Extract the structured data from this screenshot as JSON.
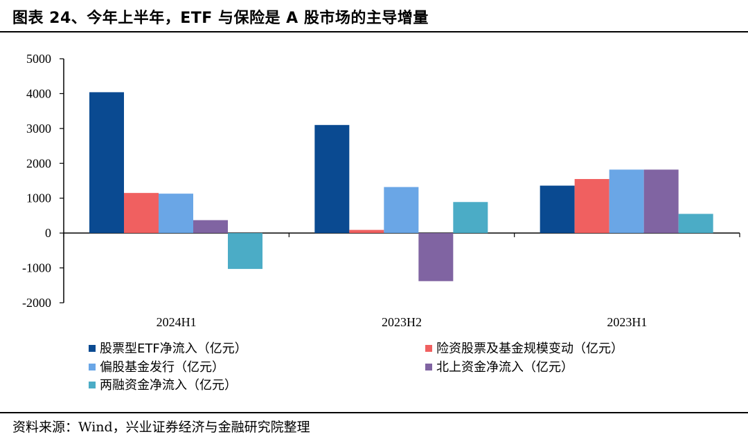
{
  "header": {
    "title": "图表 24、今年上半年，ETF 与保险是 A 股市场的主导增量"
  },
  "footer": {
    "source": "资料来源：Wind，兴业证券经济与金融研究院整理"
  },
  "chart_data": {
    "type": "bar",
    "categories": [
      "2024H1",
      "2023H2",
      "2023H1"
    ],
    "series": [
      {
        "name": "股票型ETF净流入（亿元）",
        "values": [
          4040,
          3100,
          1360
        ],
        "color": "#0a4a91"
      },
      {
        "name": "险资股票及基金规模变动（亿元）",
        "values": [
          1150,
          90,
          1550
        ],
        "color": "#f06060"
      },
      {
        "name": "偏股基金发行（亿元）",
        "values": [
          1130,
          1320,
          1820
        ],
        "color": "#6aa6e6"
      },
      {
        "name": "北上资金净流入（亿元）",
        "values": [
          370,
          -1380,
          1820
        ],
        "color": "#8064a2"
      },
      {
        "name": "两融资金净流入（亿元）",
        "values": [
          -1030,
          890,
          550
        ],
        "color": "#4bacc6"
      }
    ],
    "yticks": [
      -2000,
      -1000,
      0,
      1000,
      2000,
      3000,
      4000,
      5000
    ],
    "ylim": [
      -2000,
      5000
    ],
    "legend_position": "bottom",
    "grid": false
  }
}
